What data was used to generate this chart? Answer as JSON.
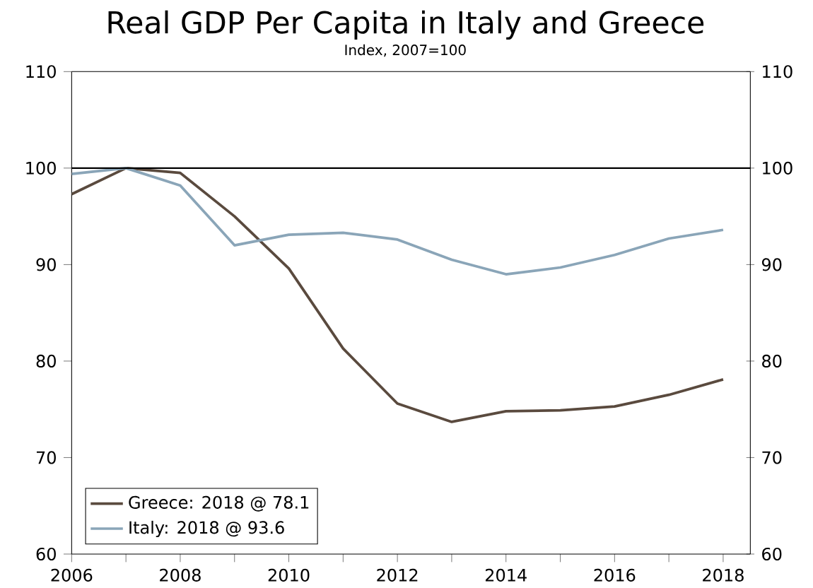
{
  "chart_data": {
    "type": "line",
    "title": "Real GDP Per Capita in Italy and Greece",
    "subtitle": "Index, 2007=100",
    "x": [
      2006,
      2007,
      2008,
      2009,
      2010,
      2011,
      2012,
      2013,
      2014,
      2015,
      2016,
      2017,
      2018
    ],
    "series": [
      {
        "name": "Greece: 2018 @ 78.1",
        "color": "#5a4a3e",
        "values": [
          97.3,
          100,
          99.5,
          95.0,
          89.6,
          81.3,
          75.6,
          73.7,
          74.8,
          74.9,
          75.3,
          76.5,
          78.1
        ]
      },
      {
        "name": "Italy: 2018 @ 93.6",
        "color": "#8aa5b8",
        "values": [
          99.4,
          100,
          98.2,
          92.0,
          93.1,
          93.3,
          92.6,
          90.5,
          89.0,
          89.7,
          91.0,
          92.7,
          93.6
        ]
      }
    ],
    "xlim": [
      2006,
      2018.5
    ],
    "xticks": [
      2006,
      {
        "value": 2007,
        "label": null
      },
      2008,
      {
        "value": 2009,
        "label": null
      },
      2010,
      {
        "value": 2011,
        "label": null
      },
      2012,
      {
        "value": 2013,
        "label": null
      },
      2014,
      {
        "value": 2015,
        "label": null
      },
      2016,
      {
        "value": 2017,
        "label": null
      },
      2018
    ],
    "ylim": [
      60,
      110
    ],
    "yticks": [
      60,
      70,
      80,
      90,
      100,
      110
    ],
    "y2lim": [
      60,
      110
    ],
    "y2ticks": [
      60,
      70,
      80,
      90,
      100,
      110
    ],
    "ref_lines": [
      {
        "axis": "y",
        "value": 100,
        "color": "#000000"
      }
    ],
    "legend": "bottom left",
    "grid": false,
    "marker": "none",
    "line_style": "solid"
  }
}
